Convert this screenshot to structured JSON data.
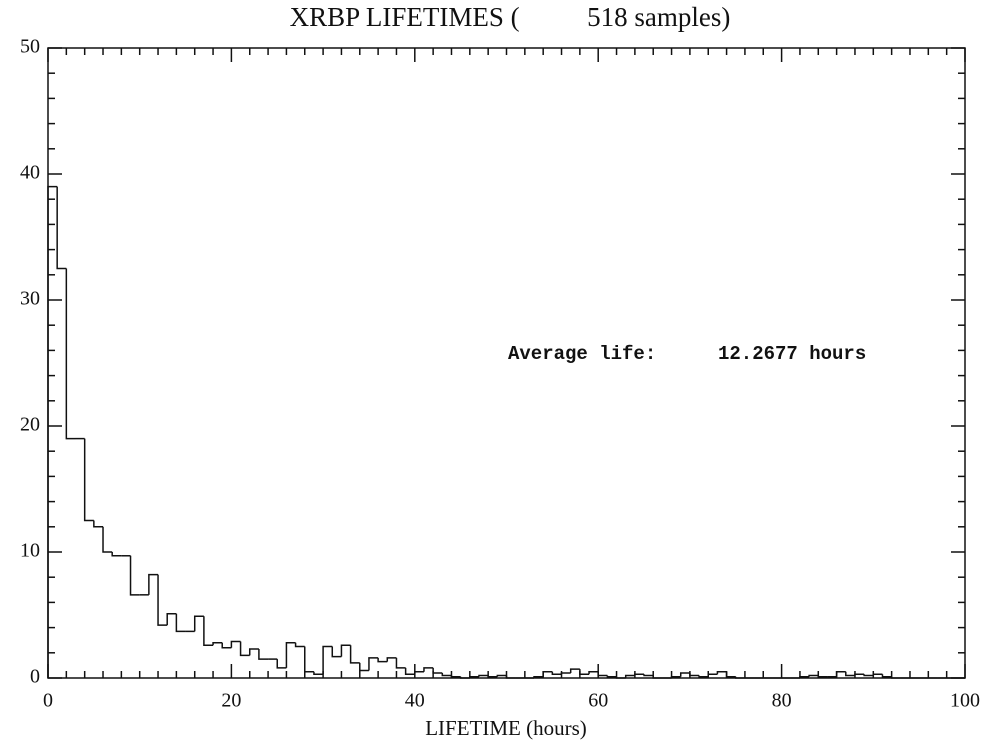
{
  "chart_data": {
    "type": "histogram",
    "title": "XRBP LIFETIMES (          518 samples)",
    "x_label": "LIFETIME (hours)",
    "annotations": [
      "Average life:",
      "12.2677 hours"
    ],
    "bins": [
      0,
      1,
      2,
      3,
      4,
      5,
      6,
      7,
      8,
      9,
      10,
      11,
      12,
      13,
      14,
      15,
      16,
      17,
      18,
      19,
      20,
      21,
      22,
      23,
      24,
      25,
      26,
      27,
      28,
      29,
      30,
      31,
      32,
      33,
      34,
      35,
      36,
      37,
      38,
      39,
      40,
      41,
      42,
      43,
      44,
      45,
      46,
      47,
      48,
      49,
      50,
      51,
      52,
      53,
      54,
      55,
      56,
      57,
      58,
      59,
      60,
      61,
      62,
      63,
      64,
      65,
      66,
      67,
      68,
      69,
      70,
      71,
      72,
      73,
      74,
      75,
      76,
      77,
      78,
      79,
      80,
      81,
      82,
      83,
      84,
      85,
      86,
      87,
      88,
      89,
      90,
      91,
      92,
      93,
      94,
      95,
      96,
      97,
      98,
      99,
      100
    ],
    "values": [
      39,
      32.5,
      19,
      19,
      12.5,
      12,
      10,
      9.7,
      9.7,
      6.6,
      6.6,
      8.2,
      4.2,
      5.1,
      3.7,
      3.7,
      4.9,
      2.6,
      2.8,
      2.4,
      2.9,
      1.8,
      2.3,
      1.5,
      1.5,
      0.8,
      2.8,
      2.5,
      0.5,
      0.3,
      2.5,
      1.7,
      2.6,
      1.2,
      0.6,
      1.6,
      1.3,
      1.6,
      0.8,
      0.3,
      0.5,
      0.8,
      0.4,
      0.2,
      0.1,
      0,
      0.1,
      0.2,
      0.1,
      0.2,
      0,
      0,
      0,
      0.1,
      0.5,
      0.3,
      0.4,
      0.7,
      0.3,
      0.5,
      0.2,
      0.1,
      0,
      0.2,
      0.3,
      0.2,
      0,
      0,
      0.1,
      0.4,
      0.2,
      0.1,
      0.3,
      0.5,
      0.1,
      0,
      0,
      0,
      0,
      0,
      0,
      0,
      0.1,
      0.2,
      0.1,
      0.1,
      0.5,
      0.2,
      0.3,
      0.2,
      0.3,
      0.1,
      0,
      0,
      0,
      0,
      0,
      0,
      0,
      0
    ],
    "color": "#000000",
    "xlim": [
      0,
      100
    ],
    "xticks": [
      0,
      20,
      40,
      60,
      80,
      100
    ],
    "ylim": [
      0,
      50
    ],
    "yticks": [
      0,
      10,
      20,
      30,
      40,
      50
    ]
  }
}
